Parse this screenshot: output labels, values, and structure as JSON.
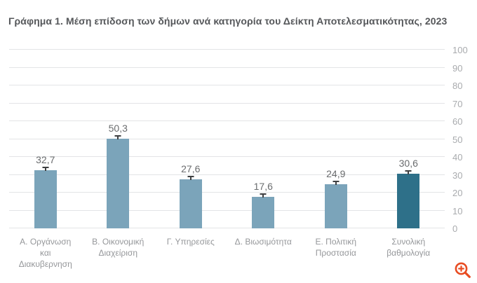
{
  "title": "Γράφημα 1. Μέση επίδοση των δήμων ανά κατηγορία του Δείκτη Αποτελεσματικότητας, 2023",
  "chart_data": {
    "type": "bar",
    "title": "Γράφημα 1. Μέση επίδοση των δήμων ανά κατηγορία του Δείκτη Αποτελεσματικότητας, 2023",
    "categories": [
      "Α. Οργάνωση και Διακυβερνηση",
      "Β. Οικονομική Διαχείριση",
      "Γ. Υπηρεσίες",
      "Δ. Βιωσιμότητα",
      "Ε. Πολιτική Προστασία",
      "Συνολική βαθμολογία"
    ],
    "category_lines": [
      [
        "Α. Οργάνωση",
        "και",
        "Διακυβερνηση"
      ],
      [
        "Β. Οικονομική",
        "Διαχείριση"
      ],
      [
        "Γ. Υπηρεσίες"
      ],
      [
        "Δ. Βιωσιμότητα"
      ],
      [
        "Ε. Πολιτική",
        "Προστασία"
      ],
      [
        "Συνολική",
        "βαθμολογία"
      ]
    ],
    "values": [
      32.7,
      50.3,
      27.6,
      17.6,
      24.9,
      30.6
    ],
    "value_labels": [
      "32,7",
      "50,3",
      "27,6",
      "17,6",
      "24,9",
      "30,6"
    ],
    "error_bars": true,
    "xlabel": "",
    "ylabel": "",
    "ylim": [
      0,
      100
    ],
    "yticks": [
      0,
      10,
      20,
      30,
      40,
      50,
      60,
      70,
      80,
      90,
      100
    ],
    "ytick_side": "right",
    "grid": true,
    "legend": "none",
    "bar_colors": [
      "#7BA4BA",
      "#7BA4BA",
      "#7BA4BA",
      "#7BA4BA",
      "#7BA4BA",
      "#2E7089"
    ]
  },
  "colors": {
    "background": "#ffffff",
    "title_text": "#55575A",
    "gridline": "#E3E4E6",
    "bar_default": "#7BA4BA",
    "bar_total": "#2E7089",
    "value_label_text": "#6A6C6E",
    "ytick_text": "#A9ABAE",
    "category_text": "#95979A",
    "error_bar": "#3E3F41",
    "zoom_icon": "#E84C22"
  },
  "icons": {
    "zoom_icon": "magnifier-plus"
  }
}
